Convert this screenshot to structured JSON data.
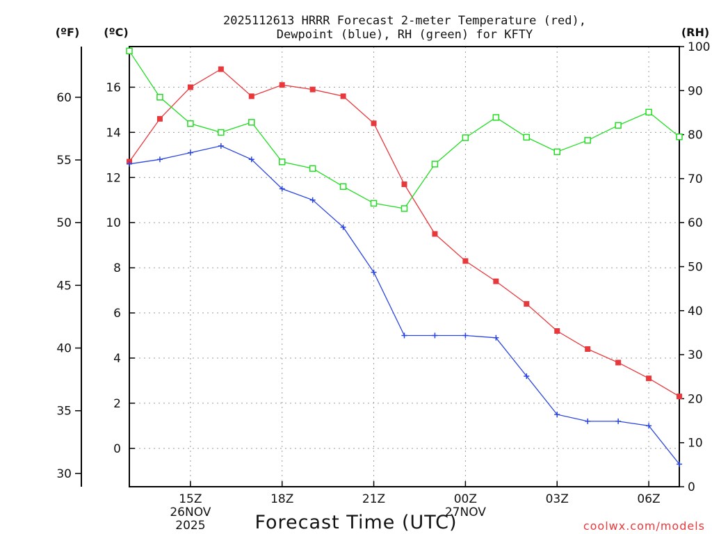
{
  "chart_data": {
    "type": "line",
    "title_line1": "2025112613 HRRR Forecast 2-meter Temperature (red),",
    "title_line2": "Dewpoint (blue), RH (green) for KFTY",
    "xlabel": "Forecast Time (UTC)",
    "credit": "coolwx.com/models",
    "unit_f": "(ºF)",
    "unit_c": "(ºC)",
    "unit_rh": "(RH)",
    "hours": [
      13,
      14,
      15,
      16,
      17,
      18,
      19,
      20,
      21,
      22,
      23,
      24,
      25,
      26,
      27,
      28,
      29,
      30,
      31
    ],
    "xlim": [
      13,
      31
    ],
    "ylim_c": [
      -1.7,
      17.8
    ],
    "ylim_rh": [
      0,
      100
    ],
    "x_ticks": [
      {
        "hour": 15,
        "label": "15Z",
        "sub1": "26NOV",
        "sub2": "2025"
      },
      {
        "hour": 18,
        "label": "18Z",
        "sub1": "",
        "sub2": ""
      },
      {
        "hour": 21,
        "label": "21Z",
        "sub1": "",
        "sub2": ""
      },
      {
        "hour": 24,
        "label": "00Z",
        "sub1": "27NOV",
        "sub2": ""
      },
      {
        "hour": 27,
        "label": "03Z",
        "sub1": "",
        "sub2": ""
      },
      {
        "hour": 30,
        "label": "06Z",
        "sub1": "",
        "sub2": ""
      }
    ],
    "c_ticks": [
      {
        "v": 0,
        "label": "0"
      },
      {
        "v": 2,
        "label": "2"
      },
      {
        "v": 4,
        "label": "4"
      },
      {
        "v": 6,
        "label": "6"
      },
      {
        "v": 8,
        "label": "8"
      },
      {
        "v": 10,
        "label": "10"
      },
      {
        "v": 12,
        "label": "12"
      },
      {
        "v": 14,
        "label": "14"
      },
      {
        "v": 16,
        "label": "16"
      }
    ],
    "f_ticks": [
      {
        "v": 30,
        "label": "30"
      },
      {
        "v": 35,
        "label": "35"
      },
      {
        "v": 40,
        "label": "40"
      },
      {
        "v": 45,
        "label": "45"
      },
      {
        "v": 50,
        "label": "50"
      },
      {
        "v": 55,
        "label": "55"
      },
      {
        "v": 60,
        "label": "60"
      }
    ],
    "rh_ticks": [
      {
        "v": 0,
        "label": "0"
      },
      {
        "v": 10,
        "label": "10"
      },
      {
        "v": 20,
        "label": "20"
      },
      {
        "v": 30,
        "label": "30"
      },
      {
        "v": 40,
        "label": "40"
      },
      {
        "v": 50,
        "label": "50"
      },
      {
        "v": 60,
        "label": "60"
      },
      {
        "v": 70,
        "label": "70"
      },
      {
        "v": 80,
        "label": "80"
      },
      {
        "v": 90,
        "label": "90"
      },
      {
        "v": 100,
        "label": "100"
      }
    ],
    "series": [
      {
        "name": "Temperature",
        "axis": "c",
        "color": "#e8383c",
        "marker": "filled-square",
        "values": [
          12.7,
          14.6,
          16.0,
          16.8,
          15.6,
          16.1,
          15.9,
          15.6,
          14.4,
          11.7,
          9.5,
          8.3,
          7.4,
          6.4,
          5.2,
          4.4,
          3.8,
          3.1,
          2.3
        ]
      },
      {
        "name": "Dewpoint",
        "axis": "c",
        "color": "#2a44e0",
        "marker": "plus",
        "values": [
          12.6,
          12.8,
          13.1,
          13.4,
          12.8,
          11.5,
          11.0,
          9.8,
          7.8,
          5.0,
          5.0,
          5.0,
          4.9,
          3.2,
          1.5,
          1.2,
          1.2,
          1.0,
          -0.7
        ]
      },
      {
        "name": "RH",
        "axis": "rh",
        "color": "#22dd22",
        "marker": "open-square",
        "values": [
          99,
          88.5,
          82.5,
          80.5,
          82.8,
          73.8,
          72.3,
          68.2,
          64.4,
          63.2,
          73.3,
          79.3,
          83.9,
          79.4,
          76.1,
          78.7,
          82.1,
          85.1,
          79.5
        ]
      }
    ]
  }
}
